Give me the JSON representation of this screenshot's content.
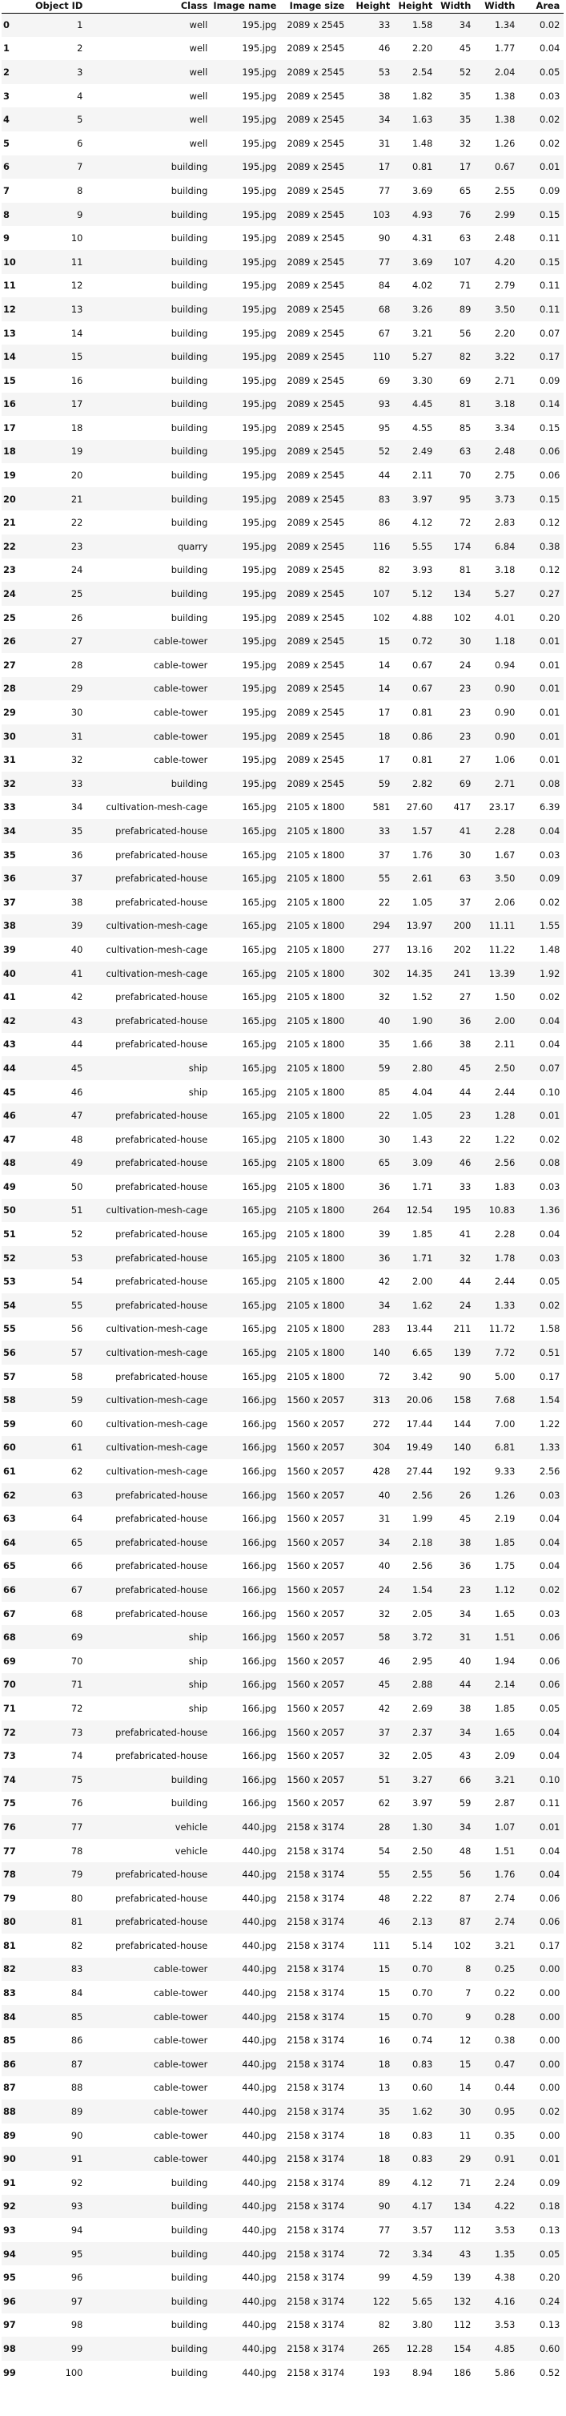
{
  "table": {
    "headers": [
      "",
      "Object ID",
      "Class",
      "Image name",
      "Image size",
      "Height",
      "Height",
      "Width",
      "Width",
      "Area"
    ],
    "rows": [
      [
        "0",
        "1",
        "well",
        "195.jpg",
        "2089 x 2545",
        "33",
        "1.58",
        "34",
        "1.34",
        "0.02"
      ],
      [
        "1",
        "2",
        "well",
        "195.jpg",
        "2089 x 2545",
        "46",
        "2.20",
        "45",
        "1.77",
        "0.04"
      ],
      [
        "2",
        "3",
        "well",
        "195.jpg",
        "2089 x 2545",
        "53",
        "2.54",
        "52",
        "2.04",
        "0.05"
      ],
      [
        "3",
        "4",
        "well",
        "195.jpg",
        "2089 x 2545",
        "38",
        "1.82",
        "35",
        "1.38",
        "0.03"
      ],
      [
        "4",
        "5",
        "well",
        "195.jpg",
        "2089 x 2545",
        "34",
        "1.63",
        "35",
        "1.38",
        "0.02"
      ],
      [
        "5",
        "6",
        "well",
        "195.jpg",
        "2089 x 2545",
        "31",
        "1.48",
        "32",
        "1.26",
        "0.02"
      ],
      [
        "6",
        "7",
        "building",
        "195.jpg",
        "2089 x 2545",
        "17",
        "0.81",
        "17",
        "0.67",
        "0.01"
      ],
      [
        "7",
        "8",
        "building",
        "195.jpg",
        "2089 x 2545",
        "77",
        "3.69",
        "65",
        "2.55",
        "0.09"
      ],
      [
        "8",
        "9",
        "building",
        "195.jpg",
        "2089 x 2545",
        "103",
        "4.93",
        "76",
        "2.99",
        "0.15"
      ],
      [
        "9",
        "10",
        "building",
        "195.jpg",
        "2089 x 2545",
        "90",
        "4.31",
        "63",
        "2.48",
        "0.11"
      ],
      [
        "10",
        "11",
        "building",
        "195.jpg",
        "2089 x 2545",
        "77",
        "3.69",
        "107",
        "4.20",
        "0.15"
      ],
      [
        "11",
        "12",
        "building",
        "195.jpg",
        "2089 x 2545",
        "84",
        "4.02",
        "71",
        "2.79",
        "0.11"
      ],
      [
        "12",
        "13",
        "building",
        "195.jpg",
        "2089 x 2545",
        "68",
        "3.26",
        "89",
        "3.50",
        "0.11"
      ],
      [
        "13",
        "14",
        "building",
        "195.jpg",
        "2089 x 2545",
        "67",
        "3.21",
        "56",
        "2.20",
        "0.07"
      ],
      [
        "14",
        "15",
        "building",
        "195.jpg",
        "2089 x 2545",
        "110",
        "5.27",
        "82",
        "3.22",
        "0.17"
      ],
      [
        "15",
        "16",
        "building",
        "195.jpg",
        "2089 x 2545",
        "69",
        "3.30",
        "69",
        "2.71",
        "0.09"
      ],
      [
        "16",
        "17",
        "building",
        "195.jpg",
        "2089 x 2545",
        "93",
        "4.45",
        "81",
        "3.18",
        "0.14"
      ],
      [
        "17",
        "18",
        "building",
        "195.jpg",
        "2089 x 2545",
        "95",
        "4.55",
        "85",
        "3.34",
        "0.15"
      ],
      [
        "18",
        "19",
        "building",
        "195.jpg",
        "2089 x 2545",
        "52",
        "2.49",
        "63",
        "2.48",
        "0.06"
      ],
      [
        "19",
        "20",
        "building",
        "195.jpg",
        "2089 x 2545",
        "44",
        "2.11",
        "70",
        "2.75",
        "0.06"
      ],
      [
        "20",
        "21",
        "building",
        "195.jpg",
        "2089 x 2545",
        "83",
        "3.97",
        "95",
        "3.73",
        "0.15"
      ],
      [
        "21",
        "22",
        "building",
        "195.jpg",
        "2089 x 2545",
        "86",
        "4.12",
        "72",
        "2.83",
        "0.12"
      ],
      [
        "22",
        "23",
        "quarry",
        "195.jpg",
        "2089 x 2545",
        "116",
        "5.55",
        "174",
        "6.84",
        "0.38"
      ],
      [
        "23",
        "24",
        "building",
        "195.jpg",
        "2089 x 2545",
        "82",
        "3.93",
        "81",
        "3.18",
        "0.12"
      ],
      [
        "24",
        "25",
        "building",
        "195.jpg",
        "2089 x 2545",
        "107",
        "5.12",
        "134",
        "5.27",
        "0.27"
      ],
      [
        "25",
        "26",
        "building",
        "195.jpg",
        "2089 x 2545",
        "102",
        "4.88",
        "102",
        "4.01",
        "0.20"
      ],
      [
        "26",
        "27",
        "cable-tower",
        "195.jpg",
        "2089 x 2545",
        "15",
        "0.72",
        "30",
        "1.18",
        "0.01"
      ],
      [
        "27",
        "28",
        "cable-tower",
        "195.jpg",
        "2089 x 2545",
        "14",
        "0.67",
        "24",
        "0.94",
        "0.01"
      ],
      [
        "28",
        "29",
        "cable-tower",
        "195.jpg",
        "2089 x 2545",
        "14",
        "0.67",
        "23",
        "0.90",
        "0.01"
      ],
      [
        "29",
        "30",
        "cable-tower",
        "195.jpg",
        "2089 x 2545",
        "17",
        "0.81",
        "23",
        "0.90",
        "0.01"
      ],
      [
        "30",
        "31",
        "cable-tower",
        "195.jpg",
        "2089 x 2545",
        "18",
        "0.86",
        "23",
        "0.90",
        "0.01"
      ],
      [
        "31",
        "32",
        "cable-tower",
        "195.jpg",
        "2089 x 2545",
        "17",
        "0.81",
        "27",
        "1.06",
        "0.01"
      ],
      [
        "32",
        "33",
        "building",
        "195.jpg",
        "2089 x 2545",
        "59",
        "2.82",
        "69",
        "2.71",
        "0.08"
      ],
      [
        "33",
        "34",
        "cultivation-mesh-cage",
        "165.jpg",
        "2105 x 1800",
        "581",
        "27.60",
        "417",
        "23.17",
        "6.39"
      ],
      [
        "34",
        "35",
        "prefabricated-house",
        "165.jpg",
        "2105 x 1800",
        "33",
        "1.57",
        "41",
        "2.28",
        "0.04"
      ],
      [
        "35",
        "36",
        "prefabricated-house",
        "165.jpg",
        "2105 x 1800",
        "37",
        "1.76",
        "30",
        "1.67",
        "0.03"
      ],
      [
        "36",
        "37",
        "prefabricated-house",
        "165.jpg",
        "2105 x 1800",
        "55",
        "2.61",
        "63",
        "3.50",
        "0.09"
      ],
      [
        "37",
        "38",
        "prefabricated-house",
        "165.jpg",
        "2105 x 1800",
        "22",
        "1.05",
        "37",
        "2.06",
        "0.02"
      ],
      [
        "38",
        "39",
        "cultivation-mesh-cage",
        "165.jpg",
        "2105 x 1800",
        "294",
        "13.97",
        "200",
        "11.11",
        "1.55"
      ],
      [
        "39",
        "40",
        "cultivation-mesh-cage",
        "165.jpg",
        "2105 x 1800",
        "277",
        "13.16",
        "202",
        "11.22",
        "1.48"
      ],
      [
        "40",
        "41",
        "cultivation-mesh-cage",
        "165.jpg",
        "2105 x 1800",
        "302",
        "14.35",
        "241",
        "13.39",
        "1.92"
      ],
      [
        "41",
        "42",
        "prefabricated-house",
        "165.jpg",
        "2105 x 1800",
        "32",
        "1.52",
        "27",
        "1.50",
        "0.02"
      ],
      [
        "42",
        "43",
        "prefabricated-house",
        "165.jpg",
        "2105 x 1800",
        "40",
        "1.90",
        "36",
        "2.00",
        "0.04"
      ],
      [
        "43",
        "44",
        "prefabricated-house",
        "165.jpg",
        "2105 x 1800",
        "35",
        "1.66",
        "38",
        "2.11",
        "0.04"
      ],
      [
        "44",
        "45",
        "ship",
        "165.jpg",
        "2105 x 1800",
        "59",
        "2.80",
        "45",
        "2.50",
        "0.07"
      ],
      [
        "45",
        "46",
        "ship",
        "165.jpg",
        "2105 x 1800",
        "85",
        "4.04",
        "44",
        "2.44",
        "0.10"
      ],
      [
        "46",
        "47",
        "prefabricated-house",
        "165.jpg",
        "2105 x 1800",
        "22",
        "1.05",
        "23",
        "1.28",
        "0.01"
      ],
      [
        "47",
        "48",
        "prefabricated-house",
        "165.jpg",
        "2105 x 1800",
        "30",
        "1.43",
        "22",
        "1.22",
        "0.02"
      ],
      [
        "48",
        "49",
        "prefabricated-house",
        "165.jpg",
        "2105 x 1800",
        "65",
        "3.09",
        "46",
        "2.56",
        "0.08"
      ],
      [
        "49",
        "50",
        "prefabricated-house",
        "165.jpg",
        "2105 x 1800",
        "36",
        "1.71",
        "33",
        "1.83",
        "0.03"
      ],
      [
        "50",
        "51",
        "cultivation-mesh-cage",
        "165.jpg",
        "2105 x 1800",
        "264",
        "12.54",
        "195",
        "10.83",
        "1.36"
      ],
      [
        "51",
        "52",
        "prefabricated-house",
        "165.jpg",
        "2105 x 1800",
        "39",
        "1.85",
        "41",
        "2.28",
        "0.04"
      ],
      [
        "52",
        "53",
        "prefabricated-house",
        "165.jpg",
        "2105 x 1800",
        "36",
        "1.71",
        "32",
        "1.78",
        "0.03"
      ],
      [
        "53",
        "54",
        "prefabricated-house",
        "165.jpg",
        "2105 x 1800",
        "42",
        "2.00",
        "44",
        "2.44",
        "0.05"
      ],
      [
        "54",
        "55",
        "prefabricated-house",
        "165.jpg",
        "2105 x 1800",
        "34",
        "1.62",
        "24",
        "1.33",
        "0.02"
      ],
      [
        "55",
        "56",
        "cultivation-mesh-cage",
        "165.jpg",
        "2105 x 1800",
        "283",
        "13.44",
        "211",
        "11.72",
        "1.58"
      ],
      [
        "56",
        "57",
        "cultivation-mesh-cage",
        "165.jpg",
        "2105 x 1800",
        "140",
        "6.65",
        "139",
        "7.72",
        "0.51"
      ],
      [
        "57",
        "58",
        "prefabricated-house",
        "165.jpg",
        "2105 x 1800",
        "72",
        "3.42",
        "90",
        "5.00",
        "0.17"
      ],
      [
        "58",
        "59",
        "cultivation-mesh-cage",
        "166.jpg",
        "1560 x 2057",
        "313",
        "20.06",
        "158",
        "7.68",
        "1.54"
      ],
      [
        "59",
        "60",
        "cultivation-mesh-cage",
        "166.jpg",
        "1560 x 2057",
        "272",
        "17.44",
        "144",
        "7.00",
        "1.22"
      ],
      [
        "60",
        "61",
        "cultivation-mesh-cage",
        "166.jpg",
        "1560 x 2057",
        "304",
        "19.49",
        "140",
        "6.81",
        "1.33"
      ],
      [
        "61",
        "62",
        "cultivation-mesh-cage",
        "166.jpg",
        "1560 x 2057",
        "428",
        "27.44",
        "192",
        "9.33",
        "2.56"
      ],
      [
        "62",
        "63",
        "prefabricated-house",
        "166.jpg",
        "1560 x 2057",
        "40",
        "2.56",
        "26",
        "1.26",
        "0.03"
      ],
      [
        "63",
        "64",
        "prefabricated-house",
        "166.jpg",
        "1560 x 2057",
        "31",
        "1.99",
        "45",
        "2.19",
        "0.04"
      ],
      [
        "64",
        "65",
        "prefabricated-house",
        "166.jpg",
        "1560 x 2057",
        "34",
        "2.18",
        "38",
        "1.85",
        "0.04"
      ],
      [
        "65",
        "66",
        "prefabricated-house",
        "166.jpg",
        "1560 x 2057",
        "40",
        "2.56",
        "36",
        "1.75",
        "0.04"
      ],
      [
        "66",
        "67",
        "prefabricated-house",
        "166.jpg",
        "1560 x 2057",
        "24",
        "1.54",
        "23",
        "1.12",
        "0.02"
      ],
      [
        "67",
        "68",
        "prefabricated-house",
        "166.jpg",
        "1560 x 2057",
        "32",
        "2.05",
        "34",
        "1.65",
        "0.03"
      ],
      [
        "68",
        "69",
        "ship",
        "166.jpg",
        "1560 x 2057",
        "58",
        "3.72",
        "31",
        "1.51",
        "0.06"
      ],
      [
        "69",
        "70",
        "ship",
        "166.jpg",
        "1560 x 2057",
        "46",
        "2.95",
        "40",
        "1.94",
        "0.06"
      ],
      [
        "70",
        "71",
        "ship",
        "166.jpg",
        "1560 x 2057",
        "45",
        "2.88",
        "44",
        "2.14",
        "0.06"
      ],
      [
        "71",
        "72",
        "ship",
        "166.jpg",
        "1560 x 2057",
        "42",
        "2.69",
        "38",
        "1.85",
        "0.05"
      ],
      [
        "72",
        "73",
        "prefabricated-house",
        "166.jpg",
        "1560 x 2057",
        "37",
        "2.37",
        "34",
        "1.65",
        "0.04"
      ],
      [
        "73",
        "74",
        "prefabricated-house",
        "166.jpg",
        "1560 x 2057",
        "32",
        "2.05",
        "43",
        "2.09",
        "0.04"
      ],
      [
        "74",
        "75",
        "building",
        "166.jpg",
        "1560 x 2057",
        "51",
        "3.27",
        "66",
        "3.21",
        "0.10"
      ],
      [
        "75",
        "76",
        "building",
        "166.jpg",
        "1560 x 2057",
        "62",
        "3.97",
        "59",
        "2.87",
        "0.11"
      ],
      [
        "76",
        "77",
        "vehicle",
        "440.jpg",
        "2158 x 3174",
        "28",
        "1.30",
        "34",
        "1.07",
        "0.01"
      ],
      [
        "77",
        "78",
        "vehicle",
        "440.jpg",
        "2158 x 3174",
        "54",
        "2.50",
        "48",
        "1.51",
        "0.04"
      ],
      [
        "78",
        "79",
        "prefabricated-house",
        "440.jpg",
        "2158 x 3174",
        "55",
        "2.55",
        "56",
        "1.76",
        "0.04"
      ],
      [
        "79",
        "80",
        "prefabricated-house",
        "440.jpg",
        "2158 x 3174",
        "48",
        "2.22",
        "87",
        "2.74",
        "0.06"
      ],
      [
        "80",
        "81",
        "prefabricated-house",
        "440.jpg",
        "2158 x 3174",
        "46",
        "2.13",
        "87",
        "2.74",
        "0.06"
      ],
      [
        "81",
        "82",
        "prefabricated-house",
        "440.jpg",
        "2158 x 3174",
        "111",
        "5.14",
        "102",
        "3.21",
        "0.17"
      ],
      [
        "82",
        "83",
        "cable-tower",
        "440.jpg",
        "2158 x 3174",
        "15",
        "0.70",
        "8",
        "0.25",
        "0.00"
      ],
      [
        "83",
        "84",
        "cable-tower",
        "440.jpg",
        "2158 x 3174",
        "15",
        "0.70",
        "7",
        "0.22",
        "0.00"
      ],
      [
        "84",
        "85",
        "cable-tower",
        "440.jpg",
        "2158 x 3174",
        "15",
        "0.70",
        "9",
        "0.28",
        "0.00"
      ],
      [
        "85",
        "86",
        "cable-tower",
        "440.jpg",
        "2158 x 3174",
        "16",
        "0.74",
        "12",
        "0.38",
        "0.00"
      ],
      [
        "86",
        "87",
        "cable-tower",
        "440.jpg",
        "2158 x 3174",
        "18",
        "0.83",
        "15",
        "0.47",
        "0.00"
      ],
      [
        "87",
        "88",
        "cable-tower",
        "440.jpg",
        "2158 x 3174",
        "13",
        "0.60",
        "14",
        "0.44",
        "0.00"
      ],
      [
        "88",
        "89",
        "cable-tower",
        "440.jpg",
        "2158 x 3174",
        "35",
        "1.62",
        "30",
        "0.95",
        "0.02"
      ],
      [
        "89",
        "90",
        "cable-tower",
        "440.jpg",
        "2158 x 3174",
        "18",
        "0.83",
        "11",
        "0.35",
        "0.00"
      ],
      [
        "90",
        "91",
        "cable-tower",
        "440.jpg",
        "2158 x 3174",
        "18",
        "0.83",
        "29",
        "0.91",
        "0.01"
      ],
      [
        "91",
        "92",
        "building",
        "440.jpg",
        "2158 x 3174",
        "89",
        "4.12",
        "71",
        "2.24",
        "0.09"
      ],
      [
        "92",
        "93",
        "building",
        "440.jpg",
        "2158 x 3174",
        "90",
        "4.17",
        "134",
        "4.22",
        "0.18"
      ],
      [
        "93",
        "94",
        "building",
        "440.jpg",
        "2158 x 3174",
        "77",
        "3.57",
        "112",
        "3.53",
        "0.13"
      ],
      [
        "94",
        "95",
        "building",
        "440.jpg",
        "2158 x 3174",
        "72",
        "3.34",
        "43",
        "1.35",
        "0.05"
      ],
      [
        "95",
        "96",
        "building",
        "440.jpg",
        "2158 x 3174",
        "99",
        "4.59",
        "139",
        "4.38",
        "0.20"
      ],
      [
        "96",
        "97",
        "building",
        "440.jpg",
        "2158 x 3174",
        "122",
        "5.65",
        "132",
        "4.16",
        "0.24"
      ],
      [
        "97",
        "98",
        "building",
        "440.jpg",
        "2158 x 3174",
        "82",
        "3.80",
        "112",
        "3.53",
        "0.13"
      ],
      [
        "98",
        "99",
        "building",
        "440.jpg",
        "2158 x 3174",
        "265",
        "12.28",
        "154",
        "4.85",
        "0.60"
      ],
      [
        "99",
        "100",
        "building",
        "440.jpg",
        "2158 x 3174",
        "193",
        "8.94",
        "186",
        "5.86",
        "0.52"
      ]
    ]
  }
}
